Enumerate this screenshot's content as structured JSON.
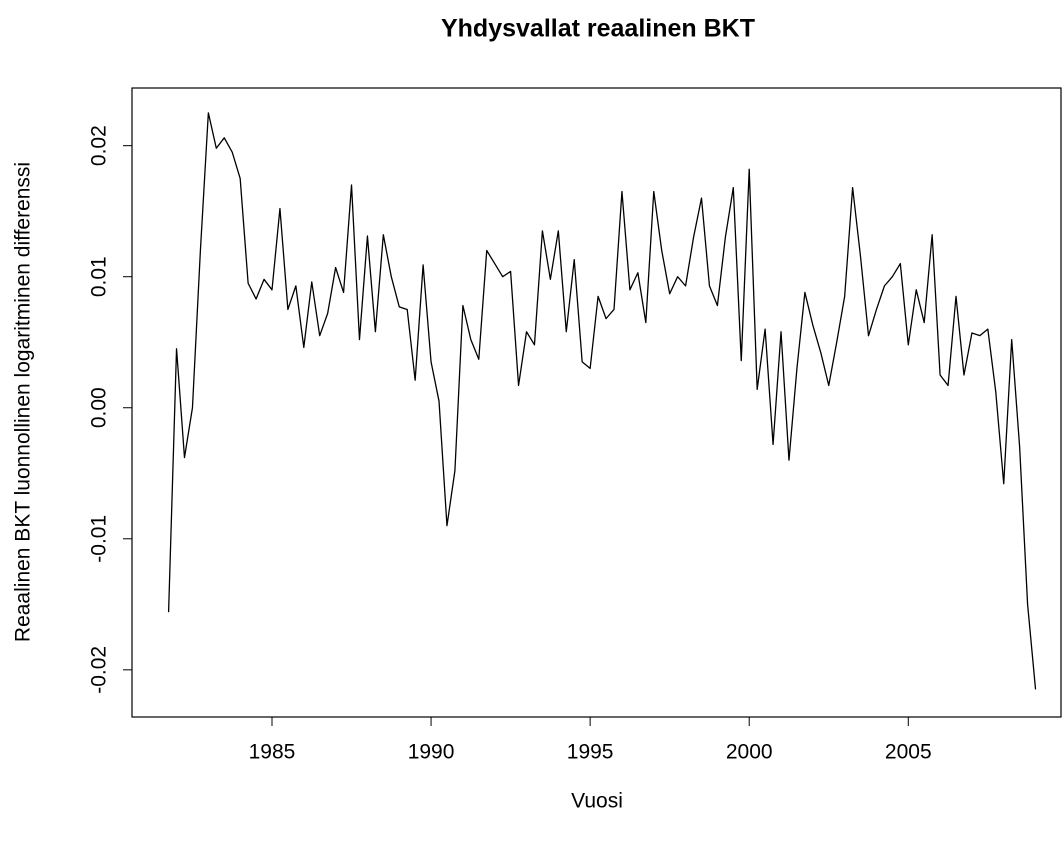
{
  "chart_data": {
    "type": "line",
    "title": "Yhdysvallat reaalinen BKT",
    "xlabel": "Vuosi",
    "ylabel": "Reaalinen BKT luonnollinen logaritminen differenssi",
    "x": [
      1981.75,
      1982,
      1982.25,
      1982.5,
      1982.75,
      1983,
      1983.25,
      1983.5,
      1983.75,
      1984,
      1984.25,
      1984.5,
      1984.75,
      1985,
      1985.25,
      1985.5,
      1985.75,
      1986,
      1986.25,
      1986.5,
      1986.75,
      1987,
      1987.25,
      1987.5,
      1987.75,
      1988,
      1988.25,
      1988.5,
      1988.75,
      1989,
      1989.25,
      1989.5,
      1989.75,
      1990,
      1990.25,
      1990.5,
      1990.75,
      1991,
      1991.25,
      1991.5,
      1991.75,
      1992,
      1992.25,
      1992.5,
      1992.75,
      1993,
      1993.25,
      1993.5,
      1993.75,
      1994,
      1994.25,
      1994.5,
      1994.75,
      1995,
      1995.25,
      1995.5,
      1995.75,
      1996,
      1996.25,
      1996.5,
      1996.75,
      1997,
      1997.25,
      1997.5,
      1997.75,
      1998,
      1998.25,
      1998.5,
      1998.75,
      1999,
      1999.25,
      1999.5,
      1999.75,
      2000,
      2000.25,
      2000.5,
      2000.75,
      2001,
      2001.25,
      2001.5,
      2001.75,
      2002,
      2002.25,
      2002.5,
      2002.75,
      2003,
      2003.25,
      2003.5,
      2003.75,
      2004,
      2004.25,
      2004.5,
      2004.75,
      2005,
      2005.25,
      2005.5,
      2005.75,
      2006,
      2006.25,
      2006.5,
      2006.75,
      2007,
      2007.25,
      2007.5,
      2007.75,
      2008,
      2008.25,
      2008.5,
      2008.75,
      2009
    ],
    "series": [
      {
        "color": "#000000",
        "values": [
          -0.0156,
          0.0045,
          -0.0038,
          0.0,
          0.012,
          0.0225,
          0.0198,
          0.0206,
          0.0195,
          0.0175,
          0.0095,
          0.0083,
          0.0098,
          0.009,
          0.0152,
          0.0075,
          0.0093,
          0.0046,
          0.0096,
          0.0055,
          0.0072,
          0.0107,
          0.0088,
          0.017,
          0.0052,
          0.0131,
          0.0058,
          0.0132,
          0.01,
          0.0077,
          0.0075,
          0.0021,
          0.0109,
          0.0035,
          0.0005,
          -0.009,
          -0.0048,
          0.0078,
          0.0052,
          0.0037,
          0.012,
          0.011,
          0.01,
          0.0104,
          0.0017,
          0.0058,
          0.0048,
          0.0135,
          0.0098,
          0.0135,
          0.0058,
          0.0113,
          0.0035,
          0.003,
          0.0085,
          0.0068,
          0.0075,
          0.0165,
          0.009,
          0.0103,
          0.0065,
          0.0165,
          0.012,
          0.0087,
          0.01,
          0.0093,
          0.013,
          0.016,
          0.0093,
          0.0078,
          0.013,
          0.0168,
          0.0036,
          0.0182,
          0.0014,
          0.006,
          -0.0028,
          0.0058,
          -0.004,
          0.003,
          0.0088,
          0.0063,
          0.0042,
          0.0017,
          0.005,
          0.0085,
          0.0168,
          0.0115,
          0.0055,
          0.0075,
          0.0093,
          0.01,
          0.011,
          0.0048,
          0.009,
          0.0065,
          0.0132,
          0.0025,
          0.0017,
          0.0085,
          0.0025,
          0.0057,
          0.0055,
          0.006,
          0.0012,
          -0.0058,
          0.0052,
          -0.003,
          -0.015,
          -0.0215
        ]
      }
    ],
    "xlim": [
      1980.6,
      2009.8
    ],
    "ylim": [
      -0.0236,
      0.0244
    ],
    "xticks": [
      1985,
      1990,
      1995,
      2000,
      2005
    ],
    "yticks": [
      -0.02,
      -0.01,
      {
        "value": 0,
        "label": "0.00"
      },
      0.01,
      0.02
    ],
    "grid": false
  }
}
